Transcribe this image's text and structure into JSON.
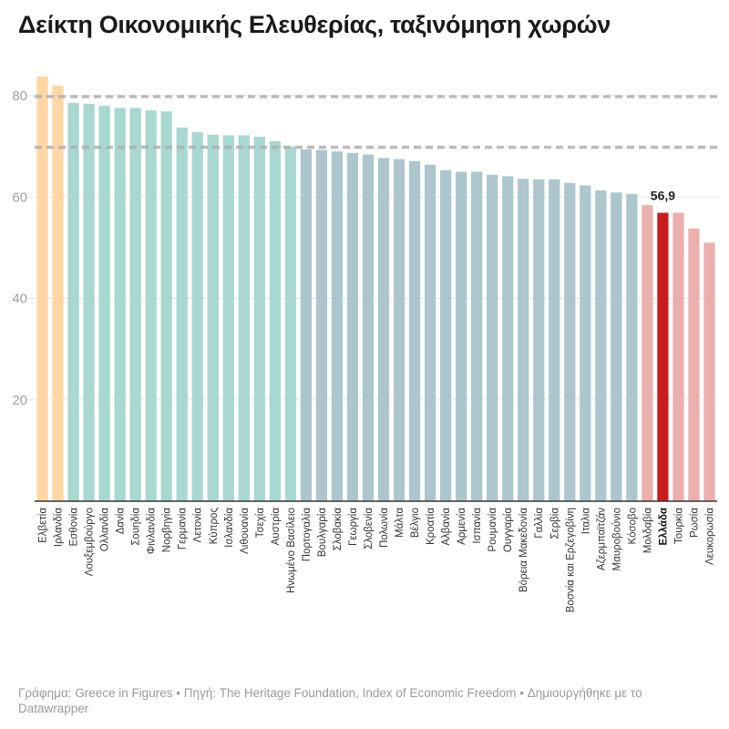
{
  "chart_data": {
    "type": "bar",
    "title": "Δείκτη Οικονομικής Ελευθερίας, ταξινόμηση χωρών",
    "xlabel": "",
    "ylabel": "",
    "ylim": [
      0,
      84
    ],
    "yticks": [
      20,
      40,
      60,
      80
    ],
    "grid": true,
    "reference_lines": [
      80,
      70
    ],
    "categories": [
      "Ελβετία",
      "Ιρλανδία",
      "Εσθονία",
      "Λουξεμβούργο",
      "Ολλανδία",
      "Δανία",
      "Σουηδία",
      "Φινλανδία",
      "Νορβηγία",
      "Γερμανία",
      "Λετονία",
      "Κύπρος",
      "Ισλανδία",
      "Λιθουανία",
      "Τσεχία",
      "Αυστρία",
      "Ηνωμένο Βασίλειο",
      "Πορτογαλία",
      "Βουλγαρία",
      "Σλοβακία",
      "Γεωργία",
      "Σλοβενία",
      "Πολωνία",
      "Μάλτα",
      "Βέλγιο",
      "Κροατία",
      "Αλβανία",
      "Αρμενία",
      "Ισπανία",
      "Ρουμανία",
      "Ουγγαρία",
      "Βόρεια Μακεδονία",
      "Γαλλία",
      "Σερβία",
      "Βοσνία και Ερζεγοβίνη",
      "Ιταλια",
      "Αζερμπαϊτζάν",
      "Μαυροβούνιο",
      "Κόσοβο",
      "Μολδαβία",
      "Ελλάδα",
      "Τουρκία",
      "Ρωσία",
      "Λευκορωσία"
    ],
    "values": [
      83.8,
      82.0,
      78.6,
      78.4,
      78.0,
      77.6,
      77.6,
      77.1,
      76.9,
      73.7,
      72.8,
      72.3,
      72.2,
      72.2,
      71.9,
      71.0,
      70.0,
      69.4,
      69.3,
      69.0,
      68.7,
      68.4,
      67.7,
      67.5,
      67.1,
      66.4,
      65.3,
      65.0,
      65.0,
      64.4,
      64.1,
      63.6,
      63.5,
      63.5,
      62.8,
      62.3,
      61.3,
      60.9,
      60.6,
      58.4,
      56.9,
      56.9,
      53.8,
      51.0
    ],
    "highlight": {
      "category": "Ελλάδα",
      "label": "56,9",
      "color": "#c71e1d"
    },
    "colors": {
      "free": "#fed7a4",
      "mostly_free": "#a8d8d0",
      "moderately_free": "#adc6ce",
      "mostly_unfree": "#ebafae",
      "reference_line": "#b0b0b0"
    }
  },
  "footer": "Γράφημα: Greece in Figures • Πηγή: The Heritage Foundation, Index of Economic Freedom • Δημιουργήθηκε με το Datawrapper"
}
